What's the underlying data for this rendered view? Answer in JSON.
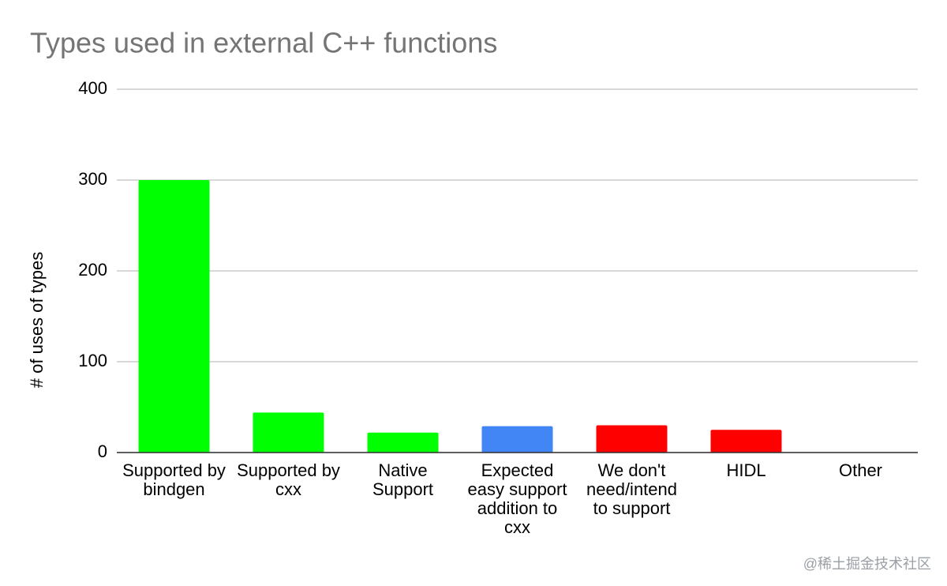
{
  "chart_data": {
    "type": "bar",
    "title": "Types used in external C++ functions",
    "y_label": "# of uses of types",
    "categories": [
      "Supported by bindgen",
      "Supported by cxx",
      "Native Support",
      "Expected easy support addition to cxx",
      "We don't need/intend to support",
      "HIDL",
      "Other"
    ],
    "values": [
      300,
      44,
      22,
      29,
      30,
      25,
      0
    ],
    "colors": [
      "#00ff00",
      "#00ff00",
      "#00ff00",
      "#4285f4",
      "#ff0000",
      "#ff0000",
      "#ff0000"
    ],
    "ylim": [
      0,
      400
    ],
    "yticks": [
      0,
      100,
      200,
      300,
      400
    ],
    "grid": true
  },
  "watermark": "@稀土掘金技术社区"
}
